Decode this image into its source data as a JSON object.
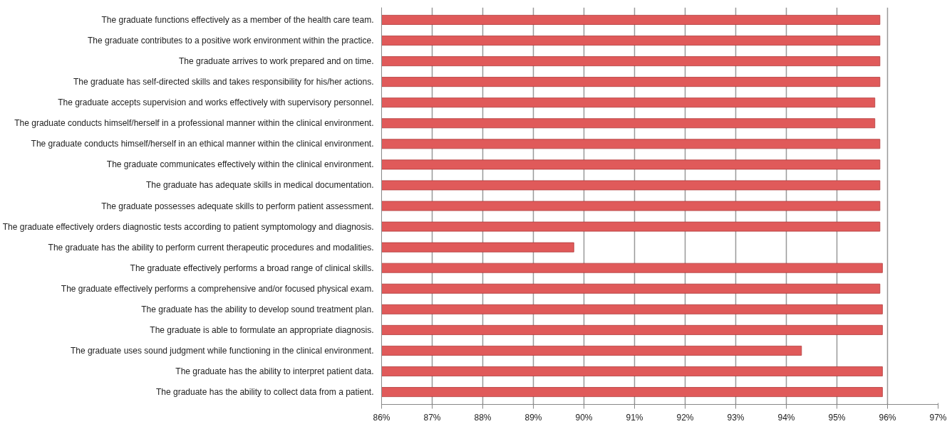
{
  "chart_data": {
    "type": "bar",
    "orientation": "horizontal",
    "categories": [
      "The graduate functions effectively as a member of the health care team.",
      "The graduate contributes to a positive work environment within the practice.",
      "The graduate arrives to work prepared and on time.",
      "The graduate has self-directed skills and takes responsibility for his/her actions.",
      "The graduate accepts supervision and works effectively with supervisory personnel.",
      "The graduate conducts himself/herself in a professional manner within the clinical environment.",
      "The graduate conducts himself/herself in an ethical manner within the clinical environment.",
      "The graduate communicates effectively within the clinical environment.",
      "The graduate has adequate skills in medical documentation.",
      "The graduate possesses adequate skills to perform patient assessment.",
      "The graduate effectively orders diagnostic tests according to patient symptomology and diagnosis.",
      "The graduate has the ability to perform current therapeutic procedures and modalities.",
      "The graduate effectively performs a broad range of clinical skills.",
      "The graduate effectively performs a comprehensive and/or focused physical exam.",
      "The graduate has the ability to develop sound treatment plan.",
      "The graduate is able to formulate an appropriate diagnosis.",
      "The graduate uses sound judgment while functioning in the clinical environment.",
      "The graduate has the ability to interpret patient data.",
      "The graduate has the ability to collect data from a patient."
    ],
    "values": [
      95.85,
      95.85,
      95.85,
      95.85,
      95.75,
      95.75,
      95.85,
      95.85,
      95.85,
      95.85,
      95.85,
      89.8,
      95.9,
      95.85,
      95.9,
      95.9,
      94.3,
      95.9,
      95.9
    ],
    "color": "#e05a5a",
    "xlim": [
      86,
      97
    ],
    "xticks": [
      {
        "value": 86,
        "label": "86%"
      },
      {
        "value": 87,
        "label": "87%"
      },
      {
        "value": 88,
        "label": "88%"
      },
      {
        "value": 89,
        "label": "89%"
      },
      {
        "value": 90,
        "label": "90%"
      },
      {
        "value": 91,
        "label": "91%"
      },
      {
        "value": 92,
        "label": "92%"
      },
      {
        "value": 93,
        "label": "93%"
      },
      {
        "value": 94,
        "label": "94%"
      },
      {
        "value": 95,
        "label": "95%"
      },
      {
        "value": 96,
        "label": "96%"
      },
      {
        "value": 97,
        "label": "97%"
      }
    ],
    "grid": "x"
  }
}
